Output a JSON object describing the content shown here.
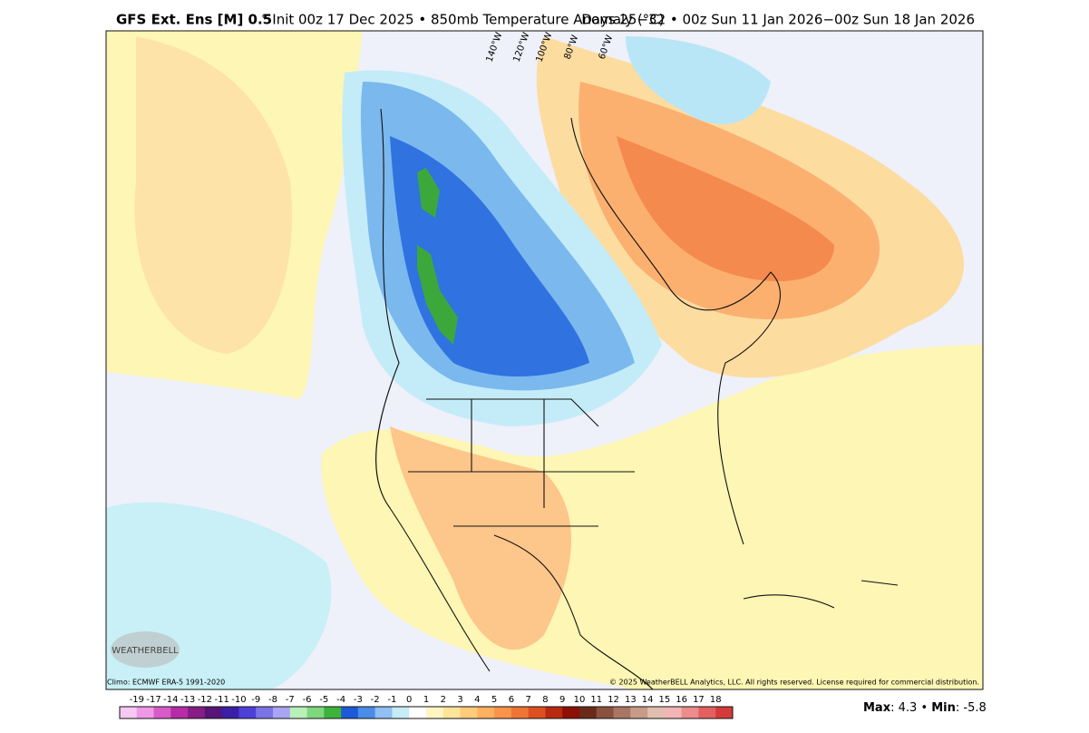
{
  "header": {
    "left_bold": "GFS Ext. Ens [M] 0.5",
    "left": "° Init 00z 17 Dec 2025 • 850mb Temperature Anomaly (°C)",
    "right": "Days 25−32 • 00z Sun 11 Jan 2026−00z Sun 18 Jan 2026"
  },
  "map": {
    "longitudes": [
      "140°W",
      "120°W",
      "100°W",
      "80°W",
      "60°W"
    ],
    "logo": "WEATHERBELL",
    "climo": "Climo: ECMWF ERA-5 1991-2020",
    "copyright": "© 2025 WeatherBELL Analytics, LLC. All rights reserved. License required for commercial distribution."
  },
  "colorbar": {
    "labels": [
      "-19",
      "-17",
      "-14",
      "-13",
      "-12",
      "-11",
      "-10",
      "-9",
      "-8",
      "-7",
      "-6",
      "-5",
      "-4",
      "-3",
      "-2",
      "-1",
      "0",
      "1",
      "2",
      "3",
      "4",
      "5",
      "6",
      "7",
      "8",
      "9",
      "10",
      "11",
      "12",
      "13",
      "14",
      "15",
      "16",
      "17",
      "18"
    ]
  },
  "stats": {
    "max_label": "Max",
    "max": 4.3,
    "min_label": "Min",
    "min": -5.8
  }
}
